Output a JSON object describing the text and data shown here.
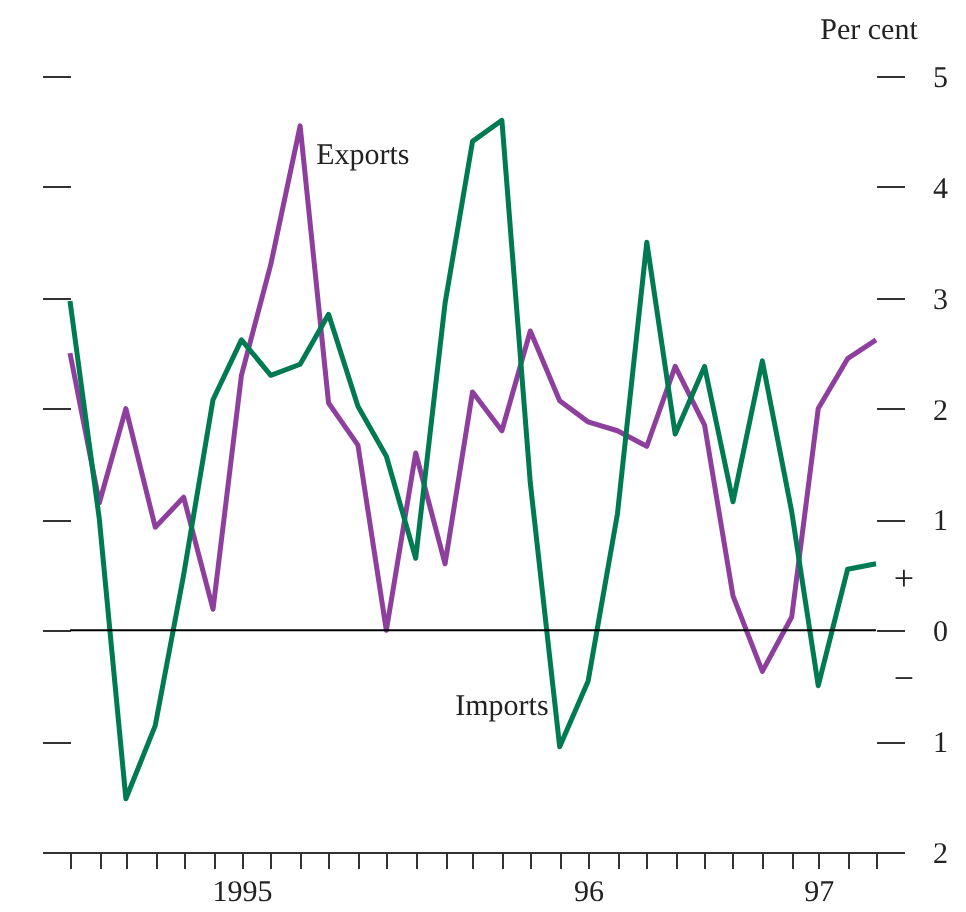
{
  "chart_data": {
    "type": "line",
    "ylabel": "Per cent",
    "x": [
      "1995-01",
      "1995-02",
      "1995-03",
      "1995-04",
      "1995-05",
      "1995-06",
      "1995-07",
      "1995-08",
      "1995-09",
      "1995-10",
      "1995-11",
      "1995-12",
      "1996-01",
      "1996-02",
      "1996-03",
      "1996-04",
      "1996-05",
      "1996-06",
      "1996-07",
      "1996-08",
      "1996-09",
      "1996-10",
      "1996-11",
      "1996-12",
      "1997-01",
      "1997-02",
      "1997-03",
      "1997-04",
      "1997-05"
    ],
    "series": [
      {
        "name": "Exports",
        "color": "#8e3f9e",
        "values": [
          2.5,
          1.15,
          2.0,
          0.93,
          1.2,
          0.19,
          2.3,
          3.3,
          4.55,
          2.05,
          1.67,
          0.0,
          1.6,
          0.6,
          2.15,
          1.8,
          2.7,
          2.07,
          1.88,
          1.8,
          1.66,
          2.38,
          1.85,
          0.31,
          -0.37,
          0.12,
          2.0,
          2.45,
          2.62
        ]
      },
      {
        "name": "Imports",
        "color": "#007a50",
        "values": [
          2.97,
          1.0,
          -1.52,
          -0.86,
          0.5,
          2.08,
          2.62,
          2.3,
          2.4,
          2.85,
          2.02,
          1.57,
          0.65,
          2.95,
          4.41,
          4.6,
          1.33,
          -1.05,
          -0.46,
          1.05,
          3.5,
          1.77,
          2.38,
          1.16,
          2.43,
          1.07,
          -0.5,
          0.55,
          0.6
        ]
      }
    ],
    "xlim": [
      "1995-01",
      "1997-05"
    ],
    "xticks": [
      {
        "value": "1995-01",
        "label": null
      },
      {
        "value": "1995-02",
        "label": null
      },
      {
        "value": "1995-03",
        "label": null
      },
      {
        "value": "1995-04",
        "label": null
      },
      {
        "value": "1995-05",
        "label": null
      },
      {
        "value": "1995-06",
        "label": null
      },
      {
        "value": "1995-07",
        "label": "1995"
      },
      {
        "value": "1995-08",
        "label": null
      },
      {
        "value": "1995-09",
        "label": null
      },
      {
        "value": "1995-10",
        "label": null
      },
      {
        "value": "1995-11",
        "label": null
      },
      {
        "value": "1995-12",
        "label": null
      },
      {
        "value": "1996-01",
        "label": null
      },
      {
        "value": "1996-02",
        "label": null
      },
      {
        "value": "1996-03",
        "label": null
      },
      {
        "value": "1996-04",
        "label": null
      },
      {
        "value": "1996-05",
        "label": null
      },
      {
        "value": "1996-06",
        "label": null
      },
      {
        "value": "1996-07",
        "label": "96"
      },
      {
        "value": "1996-08",
        "label": null
      },
      {
        "value": "1996-09",
        "label": null
      },
      {
        "value": "1996-10",
        "label": null
      },
      {
        "value": "1996-11",
        "label": null
      },
      {
        "value": "1996-12",
        "label": null
      },
      {
        "value": "1997-01",
        "label": null
      },
      {
        "value": "1997-02",
        "label": null
      },
      {
        "value": "1997-03",
        "label": "97"
      },
      {
        "value": "1997-04",
        "label": null
      },
      {
        "value": "1997-05",
        "label": null
      }
    ],
    "ylim": [
      -2,
      5
    ],
    "yticks": [
      {
        "value": -2,
        "label": "2"
      },
      {
        "value": -1,
        "label": "1"
      },
      0,
      1,
      2,
      3,
      4,
      5
    ],
    "ref_lines": [
      {
        "axis": "y",
        "value": 0,
        "color": "#000000"
      }
    ],
    "annotations": [
      "+",
      "−"
    ],
    "grid": false,
    "legend": false,
    "marker": "none",
    "line_style": "solid"
  }
}
